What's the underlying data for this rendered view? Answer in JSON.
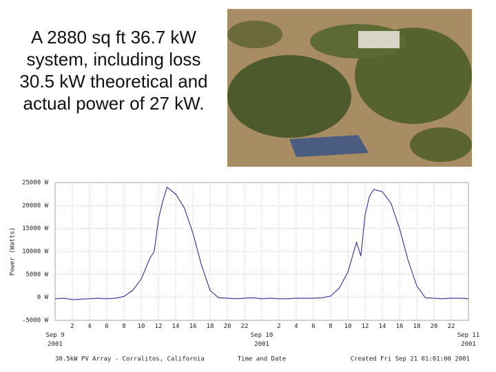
{
  "slide_text": "A 2880 sq ft 36.7 kW system, including loss 30.5 kW theoretical and actual power of 27 kW.",
  "chart_data": {
    "type": "line",
    "y_label": "Power (Watts)",
    "x_label": "Time and Date",
    "footer_left": "30.5kW PV Array - Corralitos, California",
    "footer_right": "Created Fri Sep 21 01:01:00 2001",
    "color": "#1c1c8c",
    "grid": true,
    "xlim": [
      0,
      48
    ],
    "ylim": [
      -5000,
      25000
    ],
    "yticks": [
      {
        "value": -5000,
        "label": "-5000 W"
      },
      {
        "value": 0,
        "label": "0 W"
      },
      {
        "value": 5000,
        "label": "5000 W"
      },
      {
        "value": 10000,
        "label": "10000 W"
      },
      {
        "value": 15000,
        "label": "15000 W"
      },
      {
        "value": 20000,
        "label": "20000 W"
      },
      {
        "value": 25000,
        "label": "25000 W"
      }
    ],
    "xticks": [
      {
        "value": 0,
        "label": "Sep 9\n2001"
      },
      2,
      4,
      6,
      8,
      10,
      12,
      14,
      16,
      18,
      20,
      22,
      {
        "value": 24,
        "label": "Sep 10\n2001"
      },
      {
        "value": 26,
        "label": "2"
      },
      {
        "value": 28,
        "label": "4"
      },
      {
        "value": 30,
        "label": "6"
      },
      {
        "value": 32,
        "label": "8"
      },
      {
        "value": 34,
        "label": "10"
      },
      {
        "value": 36,
        "label": "12"
      },
      {
        "value": 38,
        "label": "14"
      },
      {
        "value": 40,
        "label": "16"
      },
      {
        "value": 42,
        "label": "18"
      },
      {
        "value": 44,
        "label": "20"
      },
      {
        "value": 46,
        "label": "22"
      },
      {
        "value": 48,
        "label": "Sep 11\n2001"
      }
    ],
    "x": [
      0,
      1,
      2,
      3,
      4,
      5,
      6,
      7,
      8,
      9,
      10,
      11,
      11.5,
      12,
      12.5,
      13,
      14,
      15,
      16,
      17,
      18,
      19,
      20,
      21,
      22,
      23,
      24,
      25,
      26,
      27,
      28,
      29,
      30,
      31,
      32,
      33,
      34,
      35,
      35.5,
      36,
      36.5,
      37,
      38,
      39,
      40,
      41,
      42,
      43,
      44,
      45,
      46,
      47,
      48
    ],
    "values": [
      -300,
      -200,
      -500,
      -400,
      -300,
      -200,
      -300,
      -200,
      200,
      1500,
      4000,
      8500,
      10000,
      17000,
      21000,
      24000,
      22500,
      19500,
      14000,
      7000,
      1500,
      -100,
      -200,
      -300,
      -200,
      -100,
      -300,
      -200,
      -300,
      -300,
      -200,
      -200,
      -200,
      -100,
      300,
      2000,
      5500,
      12000,
      9000,
      18000,
      22000,
      23500,
      23000,
      20500,
      15000,
      8000,
      2500,
      -100,
      -200,
      -300,
      -200,
      -200,
      -300
    ]
  }
}
